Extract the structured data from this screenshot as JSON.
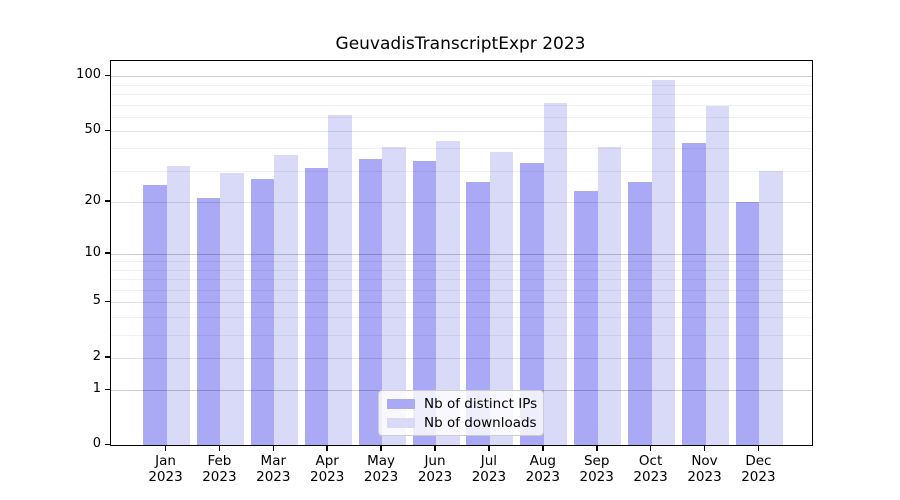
{
  "figure": {
    "background": "#ffffff"
  },
  "chart_data": {
    "type": "bar",
    "title": "GeuvadisTranscriptExpr 2023",
    "categories": [
      "Jan",
      "Feb",
      "Mar",
      "Apr",
      "May",
      "Jun",
      "Jul",
      "Aug",
      "Sep",
      "Oct",
      "Nov",
      "Dec"
    ],
    "category_year": "2023",
    "series": [
      {
        "name": "Nb of distinct IPs",
        "color": "#a9a9f6",
        "values": [
          25,
          21,
          27,
          31,
          35,
          34,
          26,
          33,
          23,
          26,
          43,
          20
        ]
      },
      {
        "name": "Nb of downloads",
        "color": "#d9d9f8",
        "values": [
          32,
          29,
          37,
          61,
          41,
          44,
          38,
          71,
          41,
          96,
          69,
          30
        ]
      }
    ],
    "xlabel": "",
    "ylabel": "",
    "yscale": "log1p",
    "ylim": [
      0,
      121
    ],
    "yticks": [
      0,
      1,
      2,
      5,
      10,
      20,
      50,
      100
    ],
    "decade_gridlines": [
      1,
      10,
      100
    ],
    "minor_gridlines": [
      3,
      4,
      6,
      7,
      8,
      9,
      30,
      40,
      60,
      70,
      80,
      90
    ],
    "grid": true,
    "legend": {
      "position": "inside-bottom-center",
      "entries": [
        "Nb of distinct IPs",
        "Nb of downloads"
      ]
    }
  }
}
